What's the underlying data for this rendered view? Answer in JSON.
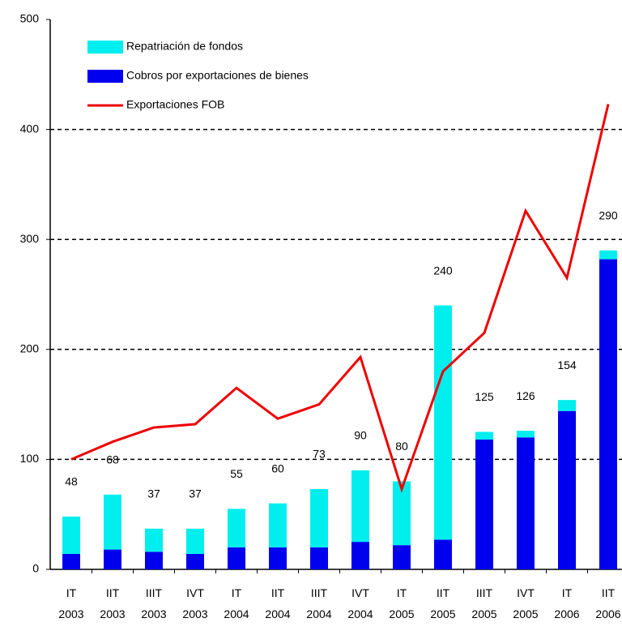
{
  "chart_data": {
    "type": "bar",
    "categories": [
      "IT 2003",
      "IIT 2003",
      "IIIT 2003",
      "IVT 2003",
      "IT 2004",
      "IIT 2004",
      "IIIT 2004",
      "IVT 2004",
      "IT 2005",
      "IIT 2005",
      "IIIT 2005",
      "IVT 2005",
      "IT 2006",
      "IIT 2006"
    ],
    "series": [
      {
        "name": "Cobros por exportaciones de bienes",
        "color": "#0000ee",
        "values": [
          14,
          18,
          16,
          14,
          20,
          20,
          20,
          25,
          22,
          27,
          118,
          120,
          144,
          282
        ]
      },
      {
        "name": "Repatriación de fondos",
        "color": "#00eeee",
        "values": [
          34,
          50,
          21,
          23,
          35,
          40,
          53,
          65,
          58,
          213,
          7,
          6,
          10,
          8
        ]
      },
      {
        "name": "Exportaciones FOB",
        "color": "#ee0000",
        "type": "line",
        "values": [
          100,
          116,
          129,
          132,
          165,
          137,
          150,
          193,
          73,
          180,
          215,
          326,
          265,
          423
        ]
      }
    ],
    "totals": [
      48,
      68,
      37,
      37,
      55,
      60,
      73,
      90,
      80,
      240,
      125,
      126,
      154,
      290
    ],
    "ylim": [
      0,
      500
    ],
    "yticks": [
      0,
      100,
      200,
      300,
      400,
      500
    ],
    "grid": true,
    "stacked": true,
    "legend": "upper left"
  }
}
